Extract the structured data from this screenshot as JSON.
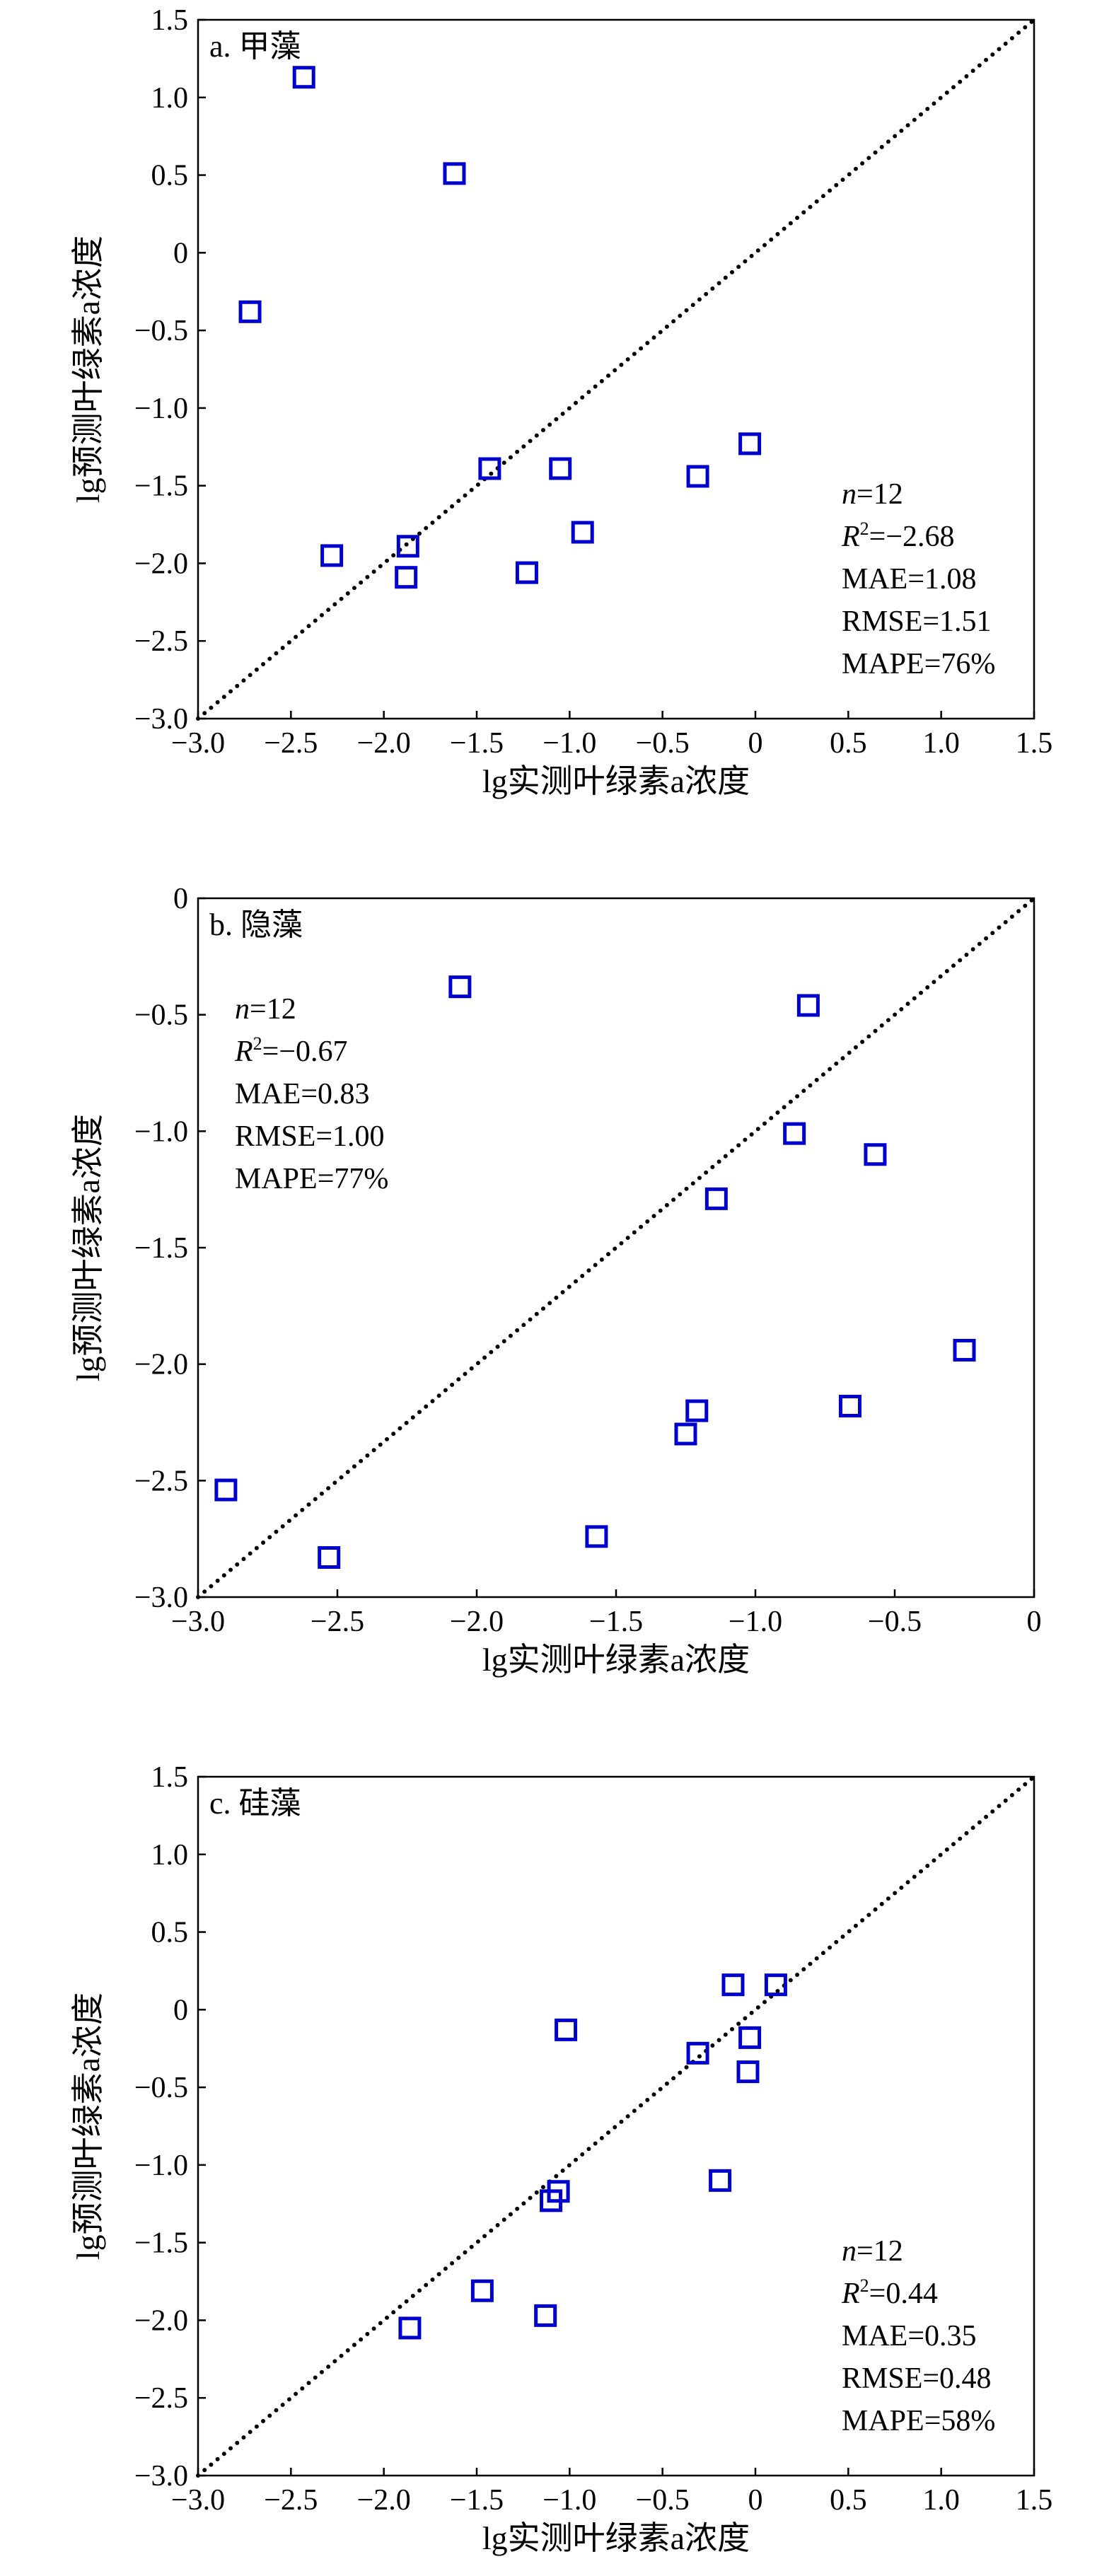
{
  "chart_data": [
    {
      "type": "scatter",
      "panel_label": "a. 甲藻",
      "xlabel": "lg实测叶绿素a浓度",
      "ylabel": "lg预测叶绿素a浓度",
      "xlim": [
        -3.0,
        1.5
      ],
      "ylim": [
        -3.0,
        1.5
      ],
      "xticks": [
        "−3.0",
        "−2.5",
        "−2.0",
        "−1.5",
        "−1.0",
        "−0.5",
        "0",
        "0.5",
        "1.0",
        "1.5"
      ],
      "yticks": [
        "−3.0",
        "−2.5",
        "−2.0",
        "−1.5",
        "−1.0",
        "−0.5",
        "0",
        "0.5",
        "1.0",
        "1.5"
      ],
      "reference_line": "1:1 dotted",
      "marker": "open square",
      "marker_color": "#0000cc",
      "stats": {
        "n": "12",
        "r2": "−2.68",
        "mae": "MAE=1.08",
        "rmse": "RMSE=1.51",
        "mape": "MAPE=76%"
      },
      "stats_position": "bottom-right",
      "points": [
        {
          "x": -2.43,
          "y": 1.13
        },
        {
          "x": -1.62,
          "y": 0.51
        },
        {
          "x": -2.72,
          "y": -0.38
        },
        {
          "x": -1.43,
          "y": -1.39
        },
        {
          "x": -1.05,
          "y": -1.39
        },
        {
          "x": -0.31,
          "y": -1.44
        },
        {
          "x": -0.03,
          "y": -1.23
        },
        {
          "x": -0.93,
          "y": -1.8
        },
        {
          "x": -1.87,
          "y": -1.89
        },
        {
          "x": -2.28,
          "y": -1.95
        },
        {
          "x": -1.88,
          "y": -2.09
        },
        {
          "x": -1.23,
          "y": -2.06
        }
      ]
    },
    {
      "type": "scatter",
      "panel_label": "b. 隐藻",
      "xlabel": "lg实测叶绿素a浓度",
      "ylabel": "lg预测叶绿素a浓度",
      "xlim": [
        -3.0,
        0
      ],
      "ylim": [
        -3.0,
        0
      ],
      "xticks": [
        "−3.0",
        "−2.5",
        "−2.0",
        "−1.5",
        "−1.0",
        "−0.5",
        "0"
      ],
      "yticks": [
        "−3.0",
        "−2.5",
        "−2.0",
        "−1.5",
        "−1.0",
        "−0.5",
        "0"
      ],
      "reference_line": "1:1 dotted",
      "marker": "open square",
      "marker_color": "#0000cc",
      "stats": {
        "n": "12",
        "r2": "−0.67",
        "mae": "MAE=0.83",
        "rmse": "RMSE=1.00",
        "mape": "MAPE=77%"
      },
      "stats_position": "top-left",
      "points": [
        {
          "x": -2.06,
          "y": -0.38
        },
        {
          "x": -0.81,
          "y": -0.46
        },
        {
          "x": -0.86,
          "y": -1.01
        },
        {
          "x": -0.57,
          "y": -1.1
        },
        {
          "x": -1.14,
          "y": -1.29
        },
        {
          "x": -0.25,
          "y": -1.94
        },
        {
          "x": -0.66,
          "y": -2.18
        },
        {
          "x": -1.21,
          "y": -2.2
        },
        {
          "x": -1.25,
          "y": -2.3
        },
        {
          "x": -2.9,
          "y": -2.54
        },
        {
          "x": -2.53,
          "y": -2.83
        },
        {
          "x": -1.57,
          "y": -2.74
        }
      ]
    },
    {
      "type": "scatter",
      "panel_label": "c. 硅藻",
      "xlabel": "lg实测叶绿素a浓度",
      "ylabel": "lg预测叶绿素a浓度",
      "xlim": [
        -3.0,
        1.5
      ],
      "ylim": [
        -3.0,
        1.5
      ],
      "xticks": [
        "−3.0",
        "−2.5",
        "−2.0",
        "−1.5",
        "−1.0",
        "−0.5",
        "0",
        "0.5",
        "1.0",
        "1.5"
      ],
      "yticks": [
        "−3.0",
        "−2.5",
        "−2.0",
        "−1.5",
        "−1.0",
        "−0.5",
        "0",
        "0.5",
        "1.0",
        "1.5"
      ],
      "reference_line": "1:1 dotted",
      "marker": "open square",
      "marker_color": "#0000cc",
      "stats": {
        "n": "12",
        "r2": "0.44",
        "mae": "MAE=0.35",
        "rmse": "RMSE=0.48",
        "mape": "MAPE=58%"
      },
      "stats_position": "bottom-right",
      "points": [
        {
          "x": -0.12,
          "y": 0.16
        },
        {
          "x": 0.11,
          "y": 0.16
        },
        {
          "x": -1.02,
          "y": -0.13
        },
        {
          "x": -0.31,
          "y": -0.28
        },
        {
          "x": -0.03,
          "y": -0.18
        },
        {
          "x": -0.04,
          "y": -0.4
        },
        {
          "x": -0.19,
          "y": -1.1
        },
        {
          "x": -1.06,
          "y": -1.17
        },
        {
          "x": -1.1,
          "y": -1.23
        },
        {
          "x": -1.47,
          "y": -1.81
        },
        {
          "x": -1.13,
          "y": -1.97
        },
        {
          "x": -1.86,
          "y": -2.05
        }
      ]
    }
  ]
}
